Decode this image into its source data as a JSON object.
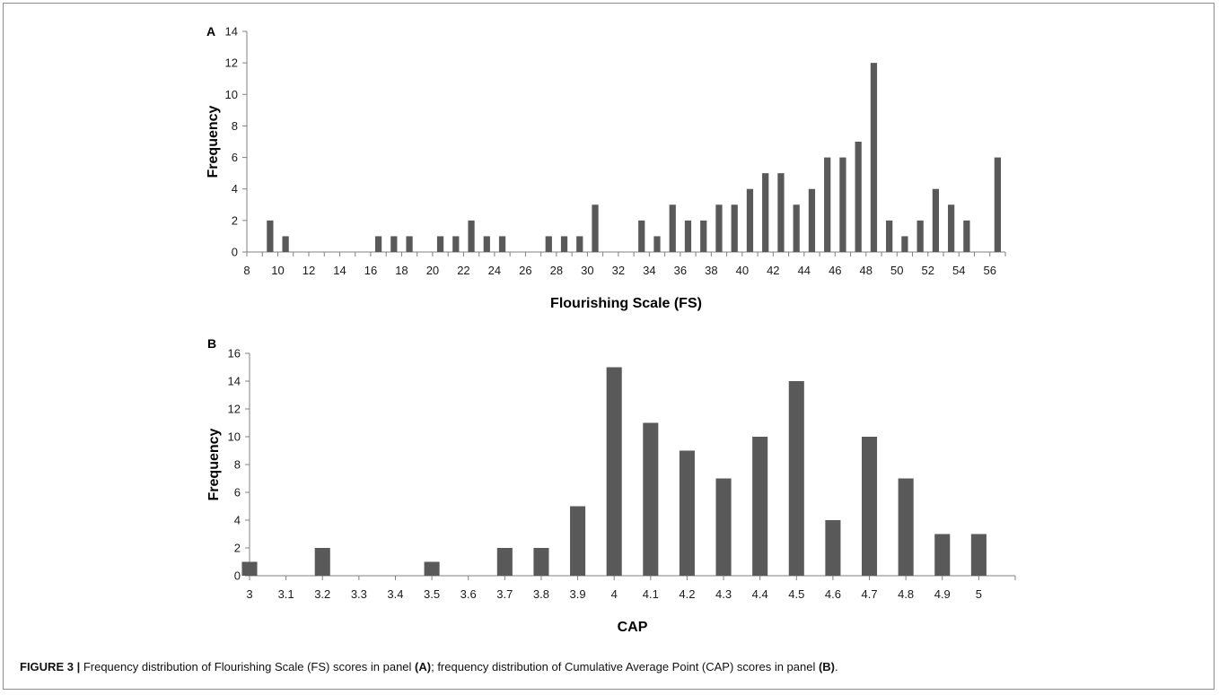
{
  "caption": {
    "figure_label": "FIGURE 3 |",
    "part1": " Frequency distribution of Flourishing Scale (FS) scores in panel ",
    "ref_a": "(A)",
    "part2": "; frequency distribution of Cumulative Average Point (CAP) scores in panel ",
    "ref_b": "(B)",
    "part3": "."
  },
  "colors": {
    "bar": "#595959",
    "axis": "#808080"
  },
  "chart_data": [
    {
      "type": "bar",
      "panel": "A",
      "xlabel": "Flourishing Scale (FS)",
      "ylabel": "Frequency",
      "ylim": [
        0,
        14
      ],
      "yticks": [
        0,
        2,
        4,
        6,
        8,
        10,
        12,
        14
      ],
      "xrange": [
        8,
        57
      ],
      "xtick_labels": [
        "8",
        "10",
        "12",
        "14",
        "16",
        "18",
        "20",
        "22",
        "24",
        "26",
        "28",
        "30",
        "32",
        "34",
        "36",
        "38",
        "40",
        "42",
        "44",
        "46",
        "48",
        "50",
        "52",
        "54",
        "56"
      ],
      "categories": [
        9,
        10,
        16,
        17,
        18,
        20,
        21,
        22,
        23,
        24,
        27,
        28,
        29,
        30,
        33,
        34,
        35,
        36,
        37,
        38,
        39,
        40,
        41,
        42,
        43,
        44,
        45,
        46,
        47,
        48,
        49,
        50,
        51,
        52,
        53,
        54,
        56
      ],
      "values": [
        2,
        1,
        1,
        1,
        1,
        1,
        1,
        2,
        1,
        1,
        1,
        1,
        1,
        3,
        2,
        1,
        3,
        2,
        2,
        3,
        3,
        4,
        5,
        5,
        3,
        4,
        6,
        6,
        7,
        12,
        2,
        1,
        2,
        4,
        3,
        2,
        6
      ],
      "grid": false
    },
    {
      "type": "bar",
      "panel": "B",
      "xlabel": "CAP",
      "ylabel": "Frequency",
      "ylim": [
        0,
        16
      ],
      "yticks": [
        0,
        2,
        4,
        6,
        8,
        10,
        12,
        14,
        16
      ],
      "categories": [
        "3",
        "3.1",
        "3.2",
        "3.3",
        "3.4",
        "3.5",
        "3.6",
        "3.7",
        "3.8",
        "3.9",
        "4",
        "4.1",
        "4.2",
        "4.3",
        "4.4",
        "4.5",
        "4.6",
        "4.7",
        "4.8",
        "4.9",
        "5"
      ],
      "values": [
        1,
        0,
        2,
        0,
        0,
        1,
        0,
        2,
        2,
        5,
        15,
        11,
        9,
        7,
        10,
        14,
        4,
        10,
        7,
        3,
        3
      ],
      "grid": false
    }
  ]
}
